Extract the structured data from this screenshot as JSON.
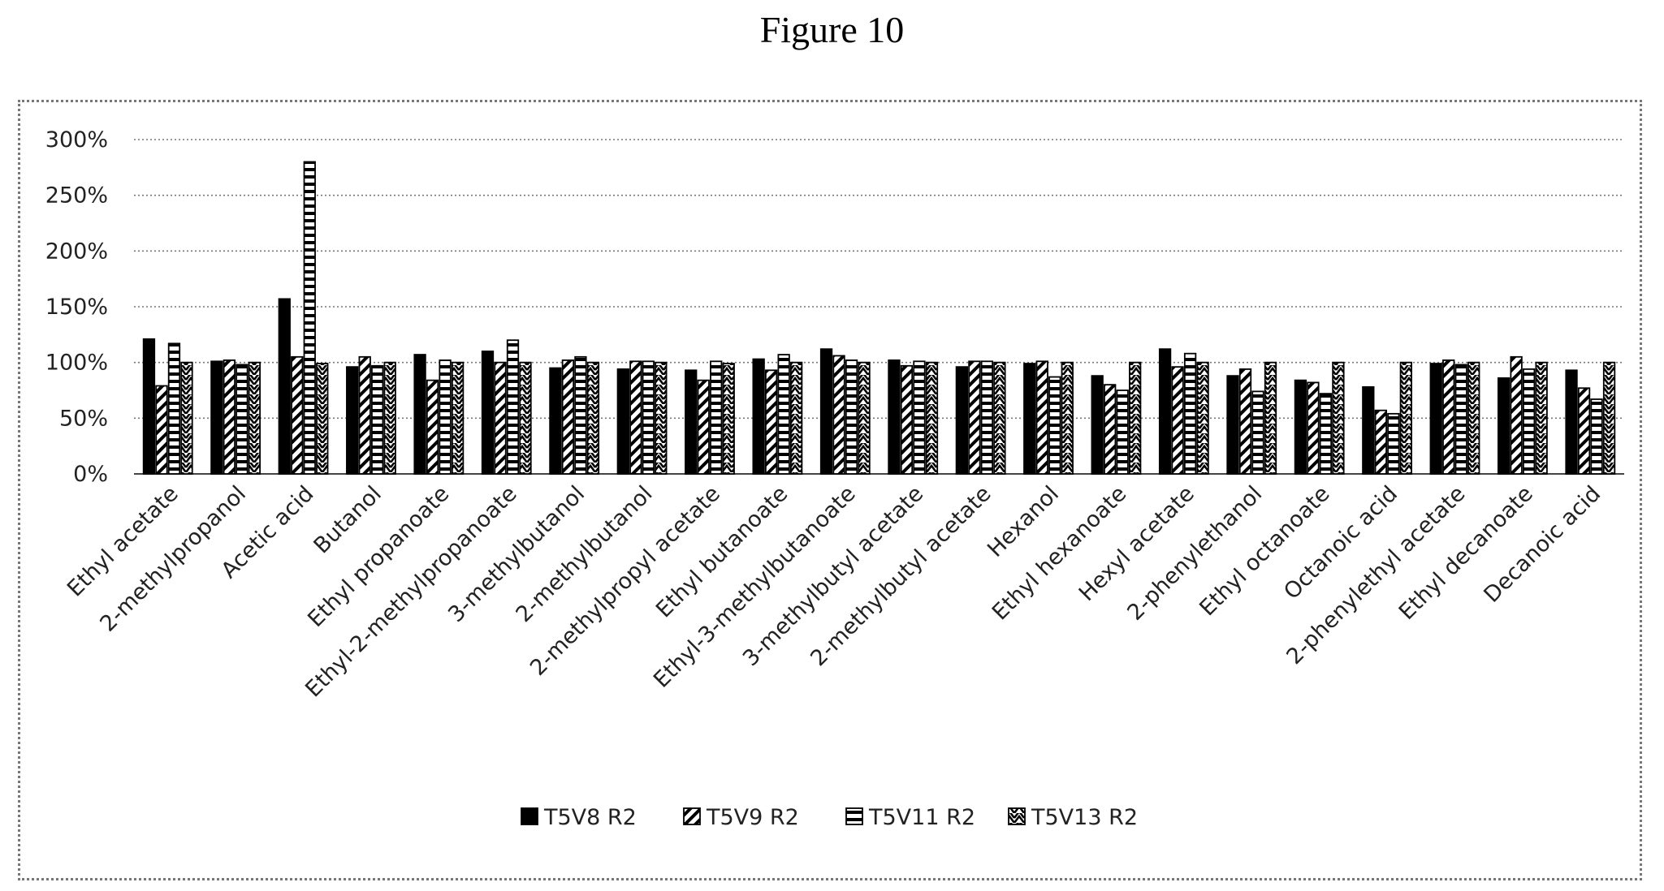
{
  "figure_label": "Figure 10",
  "chart_data": {
    "type": "bar",
    "title": "",
    "xlabel": "",
    "ylabel": "",
    "ylim": [
      0,
      300
    ],
    "y_ticks": [
      0,
      50,
      100,
      150,
      200,
      250,
      300
    ],
    "y_tick_labels": [
      "0%",
      "50%",
      "100%",
      "150%",
      "200%",
      "250%",
      "300%"
    ],
    "grid": true,
    "legend_position": "bottom",
    "categories": [
      "Ethyl acetate",
      "2-methylpropanol",
      "Acetic acid",
      "Butanol",
      "Ethyl propanoate",
      "Ethyl-2-methylpropanoate",
      "3-methylbutanol",
      "2-methylbutanol",
      "2-methylpropyl acetate",
      "Ethyl butanoate",
      "Ethyl-3-methylbutanoate",
      "3-methylbutyl acetate",
      "2-methylbutyl acetate",
      "Hexanol",
      "Ethyl hexanoate",
      "Hexyl acetate",
      "2-phenylethanol",
      "Ethyl octanoate",
      "Octanoic acid",
      "2-phenylethyl acetate",
      "Ethyl decanoate",
      "Decanoic acid"
    ],
    "series": [
      {
        "name": "T5V8 R2",
        "pattern": "solid",
        "values": [
          121,
          101,
          157,
          96,
          107,
          110,
          95,
          94,
          93,
          103,
          112,
          102,
          96,
          99,
          88,
          112,
          88,
          84,
          78,
          99,
          86,
          93
        ]
      },
      {
        "name": "T5V9 R2",
        "pattern": "diagonal",
        "values": [
          79,
          102,
          105,
          105,
          84,
          100,
          102,
          101,
          84,
          93,
          106,
          97,
          101,
          101,
          80,
          96,
          94,
          82,
          57,
          102,
          105,
          77
        ]
      },
      {
        "name": "T5V11 R2",
        "pattern": "horizontal",
        "values": [
          117,
          98,
          280,
          97,
          102,
          120,
          105,
          101,
          101,
          107,
          102,
          101,
          101,
          87,
          75,
          108,
          74,
          72,
          54,
          98,
          94,
          67
        ]
      },
      {
        "name": "T5V13 R2",
        "pattern": "zigzag",
        "values": [
          100,
          100,
          99,
          100,
          100,
          100,
          100,
          100,
          99,
          100,
          100,
          100,
          100,
          100,
          100,
          100,
          100,
          100,
          100,
          100,
          100,
          100
        ]
      }
    ]
  }
}
